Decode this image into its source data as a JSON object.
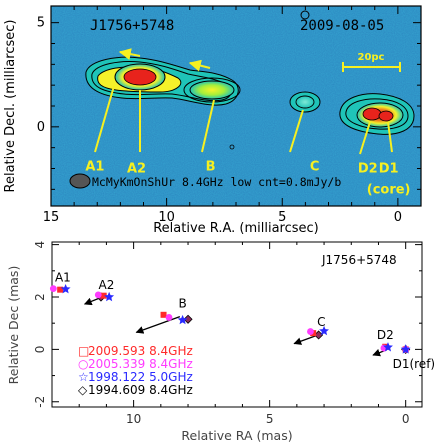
{
  "chart_data": [
    {
      "type": "heatmap",
      "title": "",
      "source_label": "J1756+5748",
      "epoch_label": "2009-08-05",
      "scale_bar_label": "20pc",
      "beam_caption": "McMyKmOnShUr 8.4GHz low cnt=0.8mJy/b",
      "xlabel": "Relative R.A. (milliarcsec)",
      "ylabel": "Relative Decl. (milliarcsec)",
      "xlim": [
        15,
        -1
      ],
      "ylim": [
        -3.8,
        5.8
      ],
      "x_ticks": [
        15,
        10,
        5,
        0
      ],
      "y_ticks": [
        -5,
        0,
        5
      ],
      "y_tick_labels": [
        "",
        "0",
        "5"
      ],
      "annotations": [
        {
          "text": "A1",
          "x": 13.1,
          "y": -1.9
        },
        {
          "text": "A2",
          "x": 11.3,
          "y": -2.0
        },
        {
          "text": "B",
          "x": 8.1,
          "y": -1.9
        },
        {
          "text": "C",
          "x": 3.6,
          "y": -1.9
        },
        {
          "text": "D2",
          "x": 1.3,
          "y": -2.0
        },
        {
          "text": "D1",
          "x": 0.4,
          "y": -2.0
        },
        {
          "text": "(core)",
          "x": 0.4,
          "y": -3.0
        }
      ],
      "components": [
        {
          "name": "A1",
          "x": 12.9,
          "y": 2.0,
          "peak": 0.45
        },
        {
          "name": "A2",
          "x": 11.1,
          "y": 2.1,
          "peak": 1.0
        },
        {
          "name": "B",
          "x": 8.0,
          "y": 1.2,
          "peak": 0.6
        },
        {
          "name": "C",
          "x": 3.1,
          "y": 0.6,
          "peak": 0.35
        },
        {
          "name": "D2",
          "x": 0.9,
          "y": 0.25,
          "peak": 0.85
        },
        {
          "name": "D1",
          "x": 0.0,
          "y": 0.0,
          "peak": 1.0
        }
      ],
      "colors": {
        "background": "#2c86c0",
        "low": "#1fc4b8",
        "mid": "#f5f22a",
        "high": "#e8231c",
        "label": "#f7f020"
      }
    },
    {
      "type": "scatter",
      "title": "",
      "source_label": "J1756+5748",
      "xlabel": "Relative RA (mas)",
      "ylabel": "Relative Dec (mas)",
      "xlim": [
        13,
        -0.6
      ],
      "ylim": [
        -2.2,
        4.1
      ],
      "x_ticks": [
        10,
        5,
        0
      ],
      "y_ticks": [
        -2,
        0,
        2,
        4
      ],
      "series": [
        {
          "name": "2009.593 8.4GHz",
          "marker": "square",
          "color": "#ff2a2a",
          "points": [
            [
              12.7,
              2.28
            ],
            [
              11.1,
              2.05
            ],
            [
              8.9,
              1.32
            ],
            [
              3.4,
              0.62
            ],
            [
              0.75,
              0.1
            ],
            [
              0.0,
              0.0
            ]
          ]
        },
        {
          "name": "2005.339 8.4GHz",
          "marker": "circle",
          "color": "#ff3cff",
          "points": [
            [
              12.95,
              2.32
            ],
            [
              11.3,
              2.08
            ],
            [
              8.7,
              1.22
            ],
            [
              3.5,
              0.68
            ],
            [
              0.8,
              0.05
            ],
            [
              0.0,
              0.0
            ]
          ]
        },
        {
          "name": "1998.122 5.0GHz",
          "marker": "star",
          "color": "#2a2aff",
          "points": [
            [
              12.5,
              2.3
            ],
            [
              10.9,
              2.0
            ],
            [
              8.2,
              1.12
            ],
            [
              3.0,
              0.7
            ],
            [
              0.65,
              0.08
            ],
            [
              0.0,
              0.0
            ]
          ]
        },
        {
          "name": "1994.609 8.4GHz",
          "marker": "diamond",
          "color": "#000000",
          "points": [
            [
              11.2,
              2.0
            ],
            [
              8.0,
              1.15
            ],
            [
              3.2,
              0.55
            ],
            [
              0.0,
              0.0
            ]
          ]
        }
      ],
      "component_labels": [
        {
          "text": "A1",
          "x": 12.6,
          "y": 2.75
        },
        {
          "text": "A2",
          "x": 11.0,
          "y": 2.45
        },
        {
          "text": "B",
          "x": 8.2,
          "y": 1.75
        },
        {
          "text": "C",
          "x": 3.1,
          "y": 1.05
        },
        {
          "text": "D2",
          "x": 0.75,
          "y": 0.55
        },
        {
          "text": "D1(ref)",
          "x": -0.3,
          "y": -0.55
        }
      ],
      "arrows": [
        {
          "x": 11.2,
          "y": 1.98,
          "dx": 0.6,
          "dy": -0.25
        },
        {
          "x": 8.3,
          "y": 1.25,
          "dx": 1.6,
          "dy": -0.6
        },
        {
          "x": 3.3,
          "y": 0.52,
          "dx": 0.8,
          "dy": -0.3
        },
        {
          "x": 0.7,
          "y": -0.02,
          "dx": 0.5,
          "dy": -0.2
        }
      ]
    }
  ]
}
